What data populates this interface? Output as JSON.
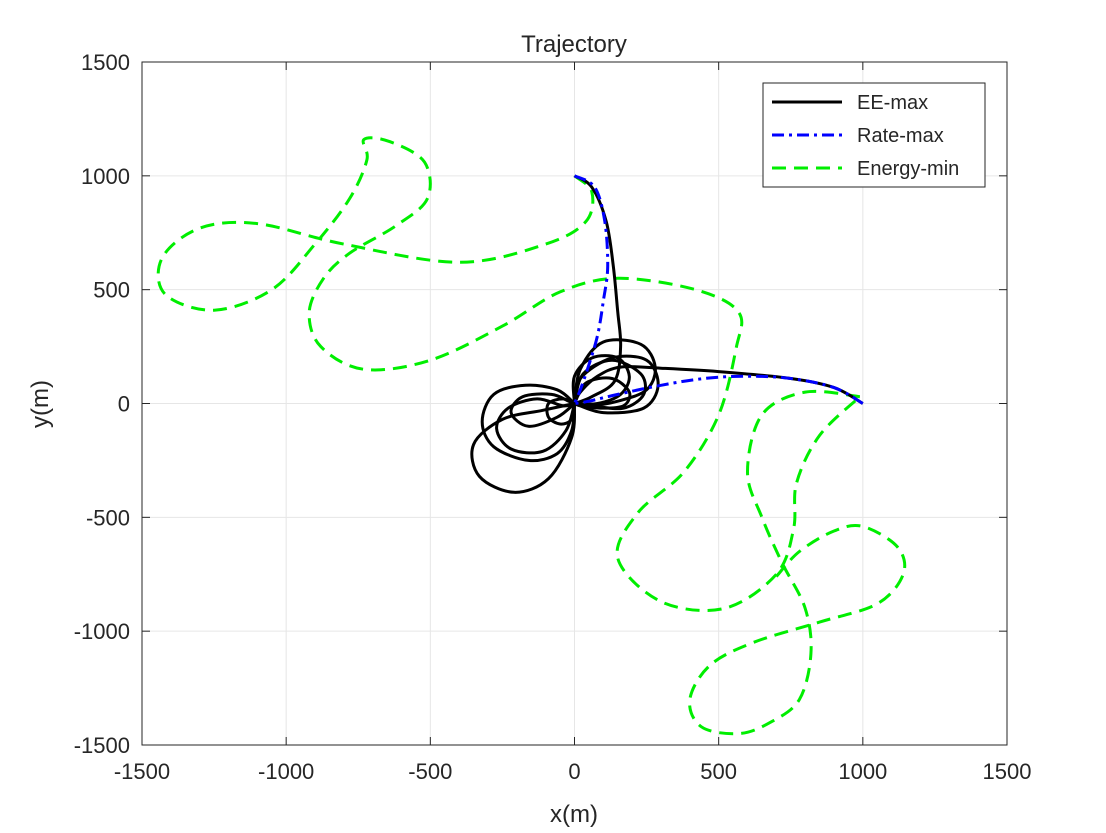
{
  "chart_data": {
    "type": "line",
    "title": "Trajectory",
    "xlabel": "x(m)",
    "ylabel": "y(m)",
    "xlim": [
      -1500,
      1500
    ],
    "ylim": [
      -1500,
      1500
    ],
    "xticks": [
      -1500,
      -1000,
      -500,
      0,
      500,
      1000,
      1500
    ],
    "yticks": [
      -1500,
      -1000,
      -500,
      0,
      500,
      1000,
      1500
    ],
    "grid": true,
    "legend_position": "top-right",
    "series": [
      {
        "name": "EE-max",
        "color": "#000000",
        "style": "solid",
        "segments": [
          [
            [
              0,
              1000
            ],
            [
              60,
              950
            ],
            [
              110,
              800
            ],
            [
              135,
              600
            ],
            [
              150,
              400
            ],
            [
              160,
              250
            ],
            [
              140,
              100
            ],
            [
              60,
              30
            ],
            [
              0,
              0
            ]
          ],
          [
            [
              1000,
              0
            ],
            [
              900,
              70
            ],
            [
              750,
              110
            ],
            [
              500,
              140
            ],
            [
              300,
              155
            ],
            [
              160,
              160
            ],
            [
              80,
              120
            ],
            [
              20,
              50
            ],
            [
              0,
              0
            ]
          ],
          [
            [
              0,
              0
            ],
            [
              -60,
              60
            ],
            [
              -170,
              80
            ],
            [
              -280,
              40
            ],
            [
              -320,
              -80
            ],
            [
              -280,
              -190
            ],
            [
              -160,
              -250
            ],
            [
              -60,
              -220
            ],
            [
              -10,
              -120
            ],
            [
              0,
              0
            ]
          ],
          [
            [
              0,
              0
            ],
            [
              -30,
              -120
            ],
            [
              -110,
              -210
            ],
            [
              -220,
              -200
            ],
            [
              -270,
              -110
            ],
            [
              -230,
              -20
            ],
            [
              -130,
              20
            ],
            [
              -40,
              -10
            ],
            [
              0,
              0
            ]
          ],
          [
            [
              0,
              0
            ],
            [
              -60,
              -60
            ],
            [
              -160,
              -100
            ],
            [
              -220,
              -40
            ],
            [
              -180,
              30
            ],
            [
              -80,
              40
            ],
            [
              -20,
              10
            ],
            [
              0,
              0
            ]
          ],
          [
            [
              0,
              0
            ],
            [
              -40,
              20
            ],
            [
              -90,
              0
            ],
            [
              -90,
              -60
            ],
            [
              -50,
              -90
            ],
            [
              -10,
              -70
            ],
            [
              0,
              0
            ]
          ],
          [
            [
              0,
              0
            ],
            [
              -10,
              -150
            ],
            [
              -90,
              -330
            ],
            [
              -210,
              -390
            ],
            [
              -330,
              -320
            ],
            [
              -350,
              -180
            ],
            [
              -250,
              -70
            ],
            [
              -110,
              -30
            ],
            [
              0,
              0
            ]
          ],
          [
            [
              0,
              0
            ],
            [
              20,
              150
            ],
            [
              100,
              270
            ],
            [
              230,
              260
            ],
            [
              280,
              160
            ],
            [
              250,
              60
            ],
            [
              150,
              10
            ],
            [
              50,
              -10
            ],
            [
              0,
              0
            ]
          ],
          [
            [
              0,
              0
            ],
            [
              30,
              130
            ],
            [
              130,
              190
            ],
            [
              230,
              130
            ],
            [
              240,
              40
            ],
            [
              170,
              -20
            ],
            [
              60,
              -10
            ],
            [
              0,
              0
            ]
          ],
          [
            [
              0,
              0
            ],
            [
              40,
              90
            ],
            [
              130,
              110
            ],
            [
              190,
              50
            ],
            [
              170,
              -10
            ],
            [
              90,
              -20
            ],
            [
              20,
              -10
            ],
            [
              0,
              0
            ]
          ],
          [
            [
              0,
              0
            ],
            [
              0,
              120
            ],
            [
              60,
              200
            ],
            [
              150,
              200
            ],
            [
              190,
              120
            ],
            [
              160,
              40
            ],
            [
              80,
              0
            ],
            [
              0,
              0
            ]
          ],
          [
            [
              0,
              0
            ],
            [
              20,
              110
            ],
            [
              130,
              200
            ],
            [
              250,
              190
            ],
            [
              290,
              80
            ],
            [
              240,
              -20
            ],
            [
              100,
              -40
            ],
            [
              0,
              0
            ]
          ]
        ]
      },
      {
        "name": "Rate-max",
        "color": "#0000ff",
        "style": "dashdot",
        "segments": [
          [
            [
              0,
              1000
            ],
            [
              70,
              950
            ],
            [
              105,
              800
            ],
            [
              115,
              600
            ],
            [
              100,
              450
            ],
            [
              80,
              300
            ],
            [
              50,
              170
            ],
            [
              20,
              60
            ],
            [
              0,
              0
            ]
          ],
          [
            [
              1000,
              0
            ],
            [
              900,
              70
            ],
            [
              750,
              110
            ],
            [
              600,
              120
            ],
            [
              450,
              110
            ],
            [
              300,
              80
            ],
            [
              150,
              40
            ],
            [
              50,
              10
            ],
            [
              0,
              0
            ]
          ]
        ]
      },
      {
        "name": "Energy-min",
        "color": "#00ee00",
        "style": "dashed",
        "segments": [
          [
            [
              0,
              1000
            ],
            [
              60,
              930
            ],
            [
              40,
              800
            ],
            [
              -100,
              700
            ],
            [
              -400,
              620
            ],
            [
              -800,
              700
            ],
            [
              -1100,
              790
            ],
            [
              -1300,
              770
            ],
            [
              -1430,
              640
            ],
            [
              -1420,
              480
            ],
            [
              -1250,
              410
            ],
            [
              -1050,
              500
            ],
            [
              -900,
              700
            ],
            [
              -780,
              900
            ],
            [
              -720,
              1070
            ],
            [
              -730,
              1160
            ],
            [
              -640,
              1150
            ],
            [
              -520,
              1060
            ],
            [
              -510,
              900
            ],
            [
              -620,
              780
            ],
            [
              -780,
              660
            ],
            [
              -870,
              550
            ],
            [
              -920,
              400
            ],
            [
              -880,
              250
            ],
            [
              -730,
              150
            ],
            [
              -500,
              190
            ],
            [
              -250,
              340
            ],
            [
              -50,
              490
            ],
            [
              150,
              550
            ],
            [
              420,
              500
            ],
            [
              570,
              400
            ],
            [
              560,
              240
            ],
            [
              500,
              -50
            ],
            [
              380,
              -300
            ],
            [
              220,
              -480
            ],
            [
              150,
              -680
            ],
            [
              300,
              -870
            ],
            [
              520,
              -900
            ],
            [
              700,
              -750
            ],
            [
              760,
              -550
            ],
            [
              770,
              -350
            ],
            [
              850,
              -140
            ],
            [
              990,
              30
            ]
          ],
          [
            [
              990,
              30
            ],
            [
              800,
              50
            ],
            [
              650,
              -50
            ],
            [
              600,
              -300
            ],
            [
              650,
              -500
            ],
            [
              720,
              -700
            ],
            [
              800,
              -900
            ],
            [
              820,
              -1100
            ],
            [
              780,
              -1300
            ],
            [
              680,
              -1400
            ],
            [
              570,
              -1450
            ],
            [
              440,
              -1420
            ],
            [
              400,
              -1300
            ],
            [
              470,
              -1150
            ],
            [
              620,
              -1050
            ],
            [
              850,
              -960
            ],
            [
              1050,
              -880
            ],
            [
              1140,
              -750
            ],
            [
              1120,
              -630
            ],
            [
              1000,
              -540
            ],
            [
              900,
              -560
            ],
            [
              780,
              -650
            ],
            [
              700,
              -760
            ]
          ]
        ]
      }
    ]
  }
}
